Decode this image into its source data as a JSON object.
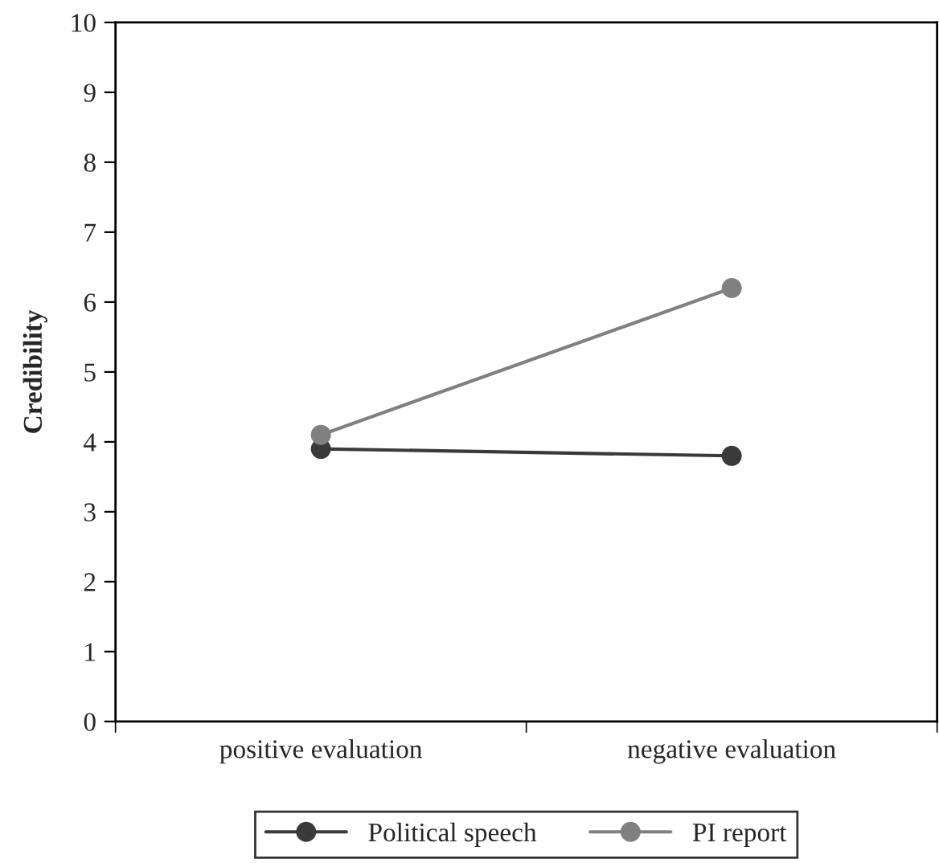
{
  "chart_data": {
    "type": "line",
    "ylabel": "Credibility",
    "categories": [
      "positive evaluation",
      "negative evaluation"
    ],
    "series": [
      {
        "name": "Political speech",
        "color": "#3a3a3a",
        "values": [
          3.9,
          3.8
        ]
      },
      {
        "name": "PI report",
        "color": "#808080",
        "values": [
          4.1,
          6.2
        ]
      }
    ],
    "ylim": [
      0,
      10
    ],
    "yticks": [
      0,
      1,
      2,
      3,
      4,
      5,
      6,
      7,
      8,
      9,
      10
    ],
    "marker": "circle",
    "line_style": "solid",
    "grid": false,
    "legend": "bottom"
  }
}
